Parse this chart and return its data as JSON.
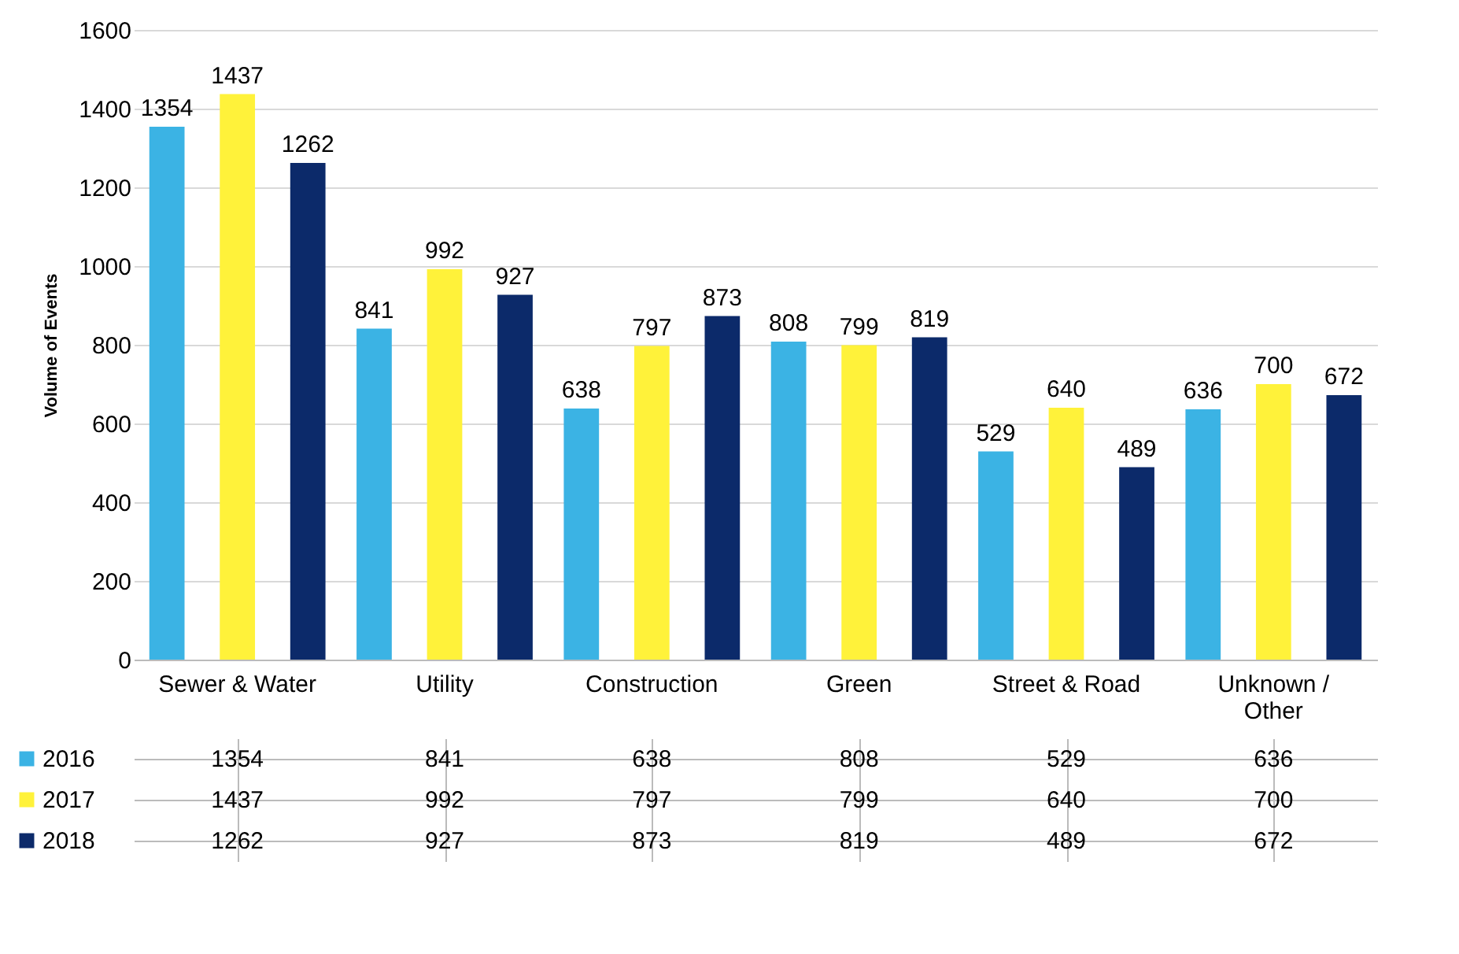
{
  "chart_data": {
    "type": "bar",
    "ylabel": "Volume of Events",
    "categories": [
      "Sewer & Water",
      "Utility",
      "Construction",
      "Green",
      "Street & Road",
      "Unknown /\nOther"
    ],
    "series": [
      {
        "name": "2016",
        "color": "#3bb3e4",
        "values": [
          1354,
          841,
          638,
          808,
          529,
          636
        ]
      },
      {
        "name": "2017",
        "color": "#fff23a",
        "values": [
          1437,
          992,
          797,
          799,
          640,
          700
        ]
      },
      {
        "name": "2018",
        "color": "#0c2a6a",
        "values": [
          1262,
          927,
          873,
          819,
          489,
          672
        ]
      }
    ],
    "annotations": [
      "1354",
      "841",
      "638",
      "808",
      "529",
      "636",
      "1437",
      "992",
      "797",
      "799",
      "640",
      "700",
      "1262",
      "927",
      "873",
      "819",
      "489",
      "672"
    ],
    "ylim": [
      0,
      1600
    ],
    "yticks": [
      0,
      200,
      400,
      600,
      800,
      1000,
      1200,
      1400,
      1600
    ],
    "grid": "y",
    "data_labels": true,
    "legend": "bottom left"
  }
}
